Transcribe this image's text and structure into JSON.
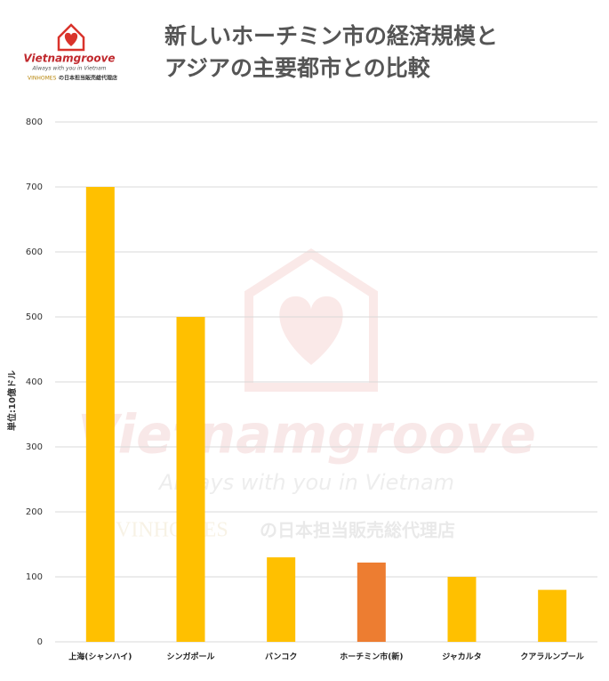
{
  "brand": {
    "name": "Vietnamgroove",
    "tagline": "Always with you in Vietnam",
    "partner": "VINHOMES",
    "partner_note": "の日本担当販売総代理店"
  },
  "chart_data": {
    "type": "bar",
    "title": [
      "新しいホーチミン市の経済規模と",
      "アジアの主要都市との比較"
    ],
    "y_label": "単位:10億ドル",
    "categories": [
      "上海(シャンハイ)",
      "シンガポール",
      "バンコク",
      "ホーチミン市(新)",
      "ジャカルタ",
      "クアラルンプール"
    ],
    "values": [
      700,
      500,
      130,
      122,
      100,
      80
    ],
    "colors": [
      "#ffc000",
      "#ffc000",
      "#ffc000",
      "#ed7d31",
      "#ffc000",
      "#ffc000"
    ],
    "ylim": [
      0,
      800
    ],
    "yticks": [
      0,
      100,
      200,
      300,
      400,
      500,
      600,
      700,
      800
    ],
    "grid": true
  }
}
